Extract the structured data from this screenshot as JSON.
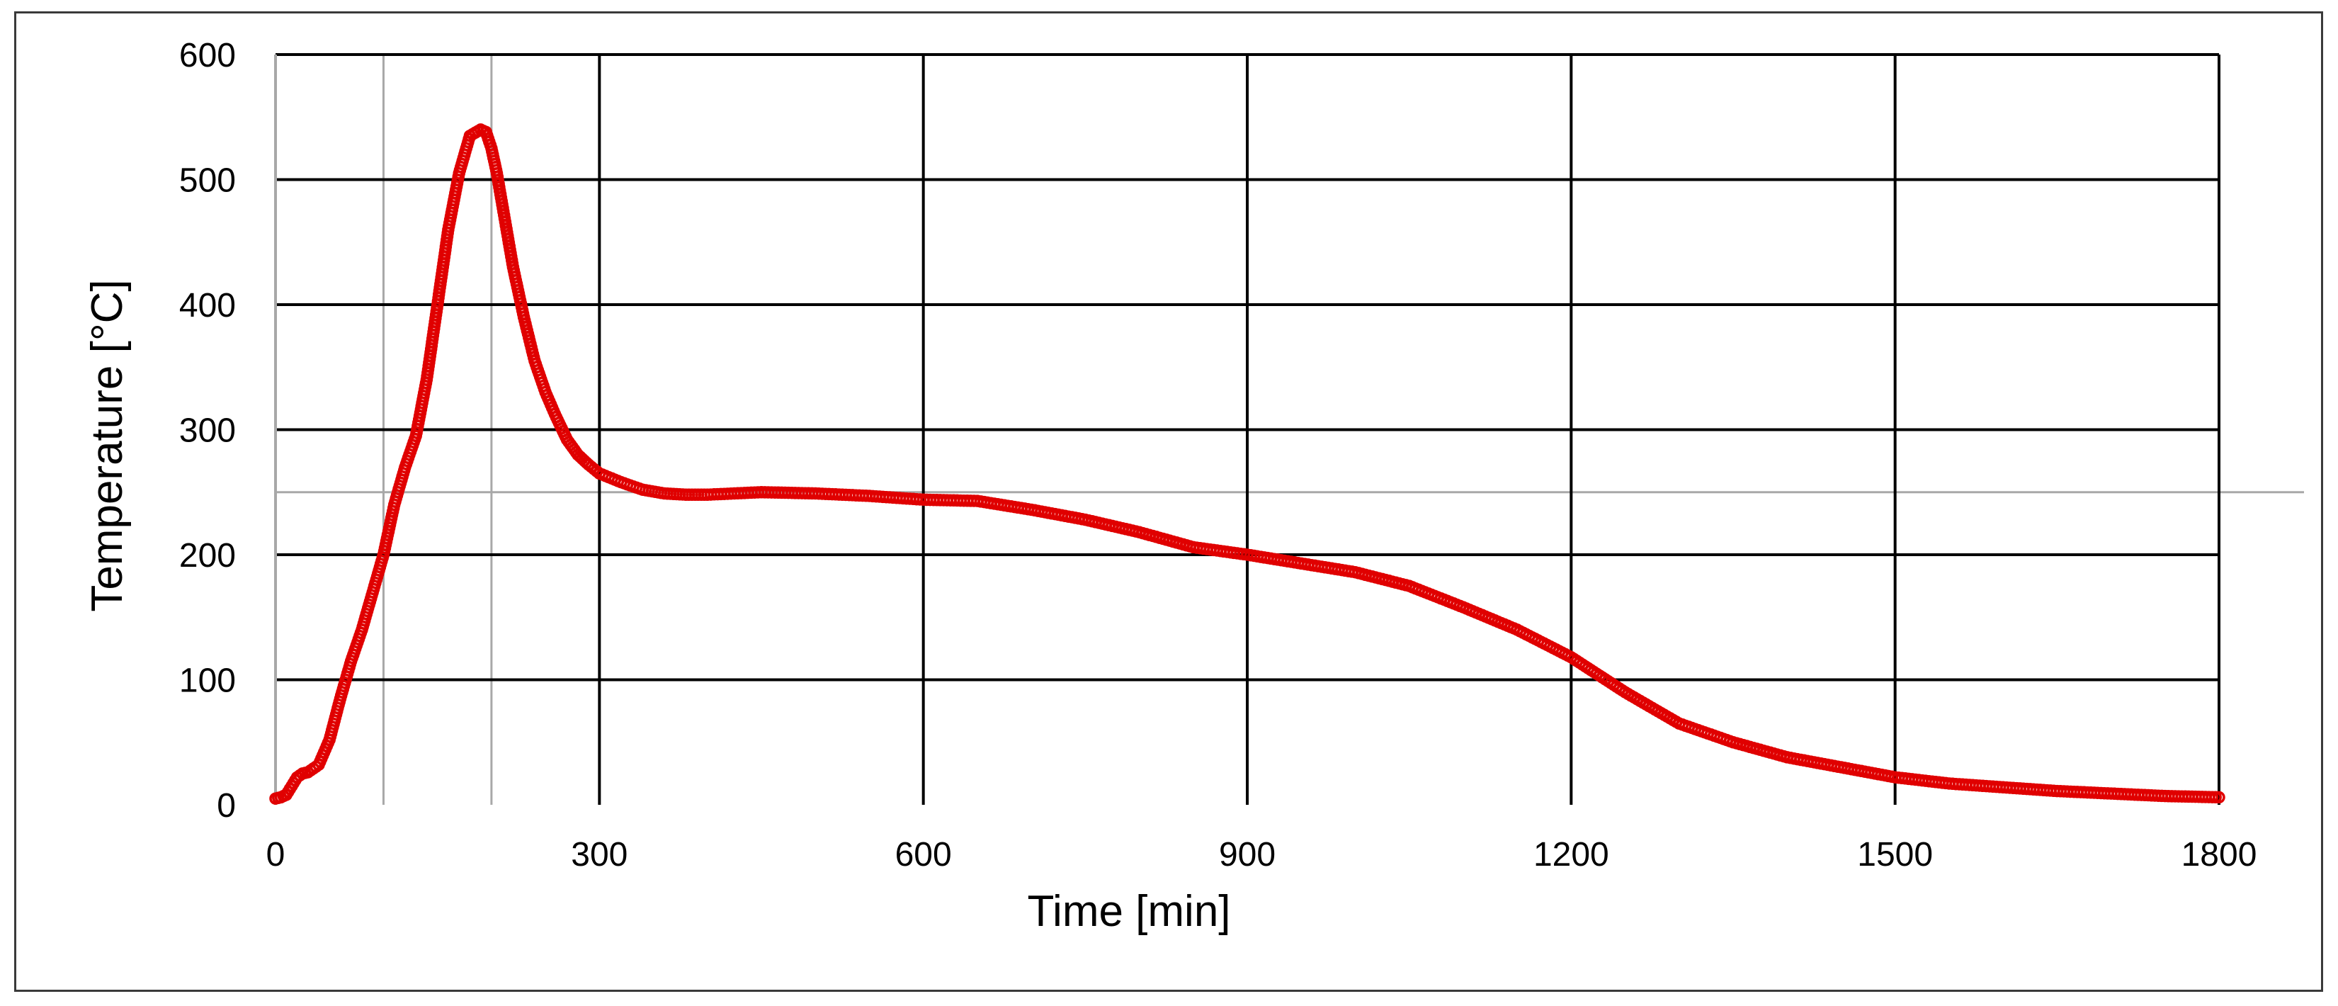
{
  "chart_data": {
    "type": "scatter",
    "title": "",
    "xlabel": "Time [min]",
    "ylabel": "Temperature [°C]",
    "xlim": [
      0,
      1800
    ],
    "ylim": [
      0,
      600
    ],
    "x_ticks": [
      "0",
      "300",
      "600",
      "900",
      "1200",
      "1500",
      "1800"
    ],
    "y_ticks": [
      "0",
      "100",
      "200",
      "300",
      "400",
      "500",
      "600"
    ],
    "grid": true,
    "legend": "none",
    "reference_lines": {
      "x": [
        100,
        200
      ],
      "y": [
        250
      ]
    },
    "marker_color": "#e00000",
    "gridline_color": "#000000",
    "reference_line_color": "#a8a8a8",
    "series": [
      {
        "x": [
          0,
          5,
          10,
          15,
          20,
          25,
          30,
          40,
          50,
          60,
          70,
          80,
          90,
          100,
          110,
          120,
          130,
          140,
          150,
          160,
          170,
          180,
          190,
          195,
          200,
          205,
          210,
          220,
          230,
          240,
          250,
          260,
          270,
          280,
          290,
          300,
          320,
          340,
          360,
          380,
          400,
          450,
          500,
          550,
          600,
          650,
          700,
          750,
          800,
          850,
          900,
          950,
          1000,
          1050,
          1100,
          1150,
          1200,
          1250,
          1300,
          1350,
          1400,
          1450,
          1500,
          1550,
          1600,
          1650,
          1700,
          1750,
          1800
        ],
        "y": [
          5,
          6,
          8,
          15,
          22,
          25,
          26,
          32,
          52,
          85,
          115,
          140,
          170,
          200,
          240,
          270,
          295,
          340,
          400,
          460,
          505,
          535,
          540,
          538,
          525,
          505,
          480,
          430,
          390,
          355,
          330,
          310,
          292,
          280,
          272,
          265,
          258,
          252,
          249,
          248,
          248,
          250,
          249,
          247,
          244,
          243,
          236,
          228,
          218,
          206,
          200,
          193,
          186,
          175,
          158,
          140,
          118,
          90,
          65,
          50,
          38,
          30,
          22,
          17,
          14,
          11,
          9,
          7,
          6
        ]
      }
    ]
  }
}
